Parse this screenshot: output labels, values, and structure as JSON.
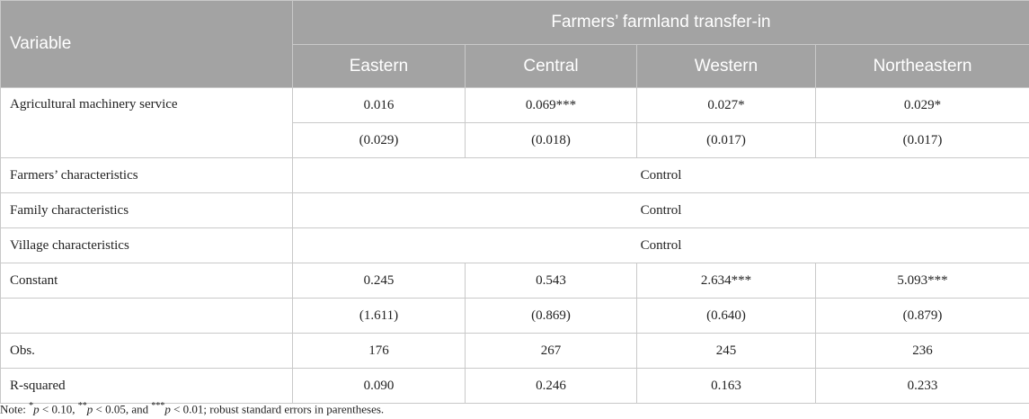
{
  "table": {
    "header": {
      "variable": "Variable",
      "group": "Farmers’ farmland transfer-in",
      "regions": [
        "Eastern",
        "Central",
        "Western",
        "Northeastern"
      ]
    },
    "rows": {
      "machinery": {
        "label": "Agricultural machinery service",
        "coef": [
          "0.016",
          "0.069***",
          "0.027*",
          "0.029*"
        ],
        "se": [
          "(0.029)",
          "(0.018)",
          "(0.017)",
          "(0.017)"
        ]
      },
      "farmers": {
        "label": "Farmers’ characteristics",
        "value": "Control"
      },
      "family": {
        "label": "Family characteristics",
        "value": "Control"
      },
      "village": {
        "label": "Village characteristics",
        "value": "Control"
      },
      "constant": {
        "label": "Constant",
        "coef": [
          "0.245",
          "0.543",
          "2.634***",
          "5.093***"
        ],
        "se": [
          "(1.611)",
          "(0.869)",
          "(0.640)",
          "(0.879)"
        ]
      },
      "obs": {
        "label": "Obs.",
        "values": [
          "176",
          "267",
          "245",
          "236"
        ]
      },
      "rsq": {
        "label": "R-squared",
        "values": [
          "0.090",
          "0.246",
          "0.163",
          "0.233"
        ]
      }
    }
  },
  "note": {
    "prefix": "Note: ",
    "s1": "*",
    "p1": "p",
    "t1": " < 0.10, ",
    "s2": "**",
    "p2": "p",
    "t2": " < 0.05, and ",
    "s3": "***",
    "p3": "p",
    "t3": " < 0.01; robust standard errors in parentheses."
  }
}
